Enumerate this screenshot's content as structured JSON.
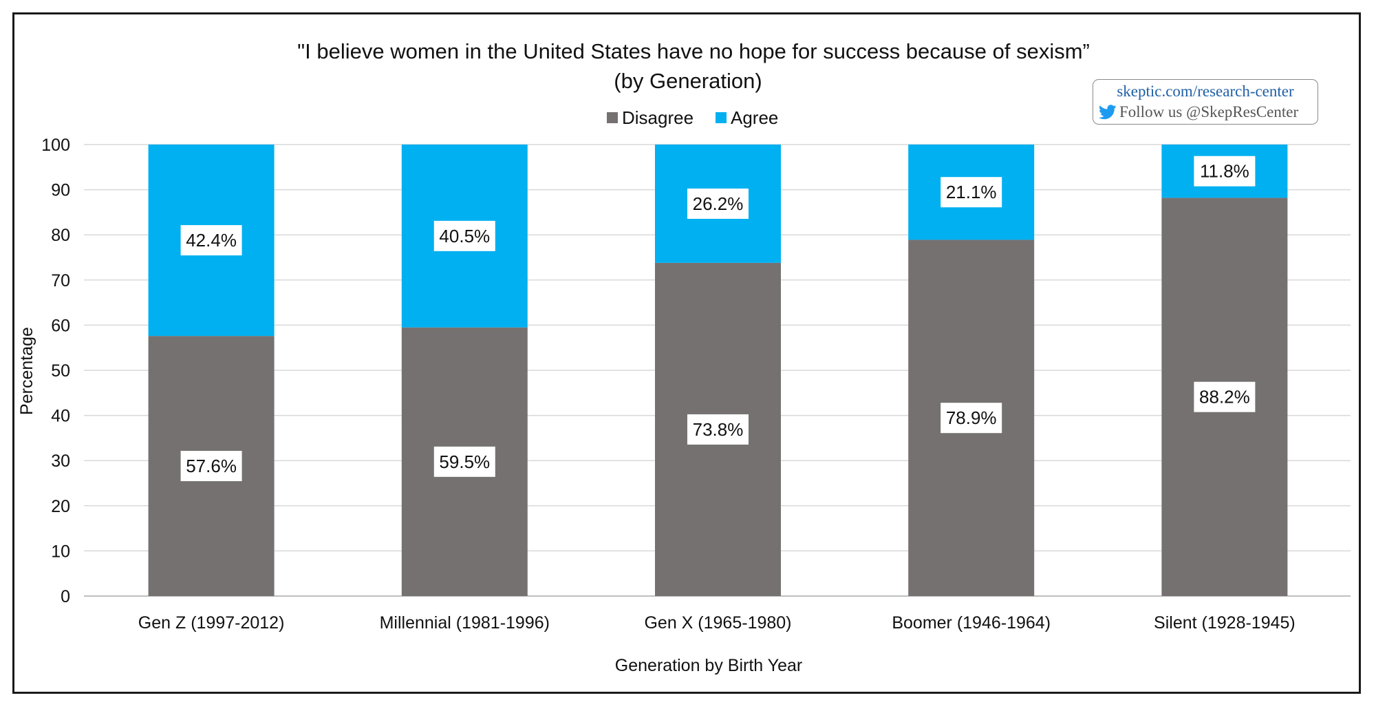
{
  "chart_data": {
    "type": "bar",
    "stacked": true,
    "title": "\"I believe women in the United States have no hope for success because of sexism”",
    "subtitle": "(by Generation)",
    "xlabel": "Generation by Birth Year",
    "ylabel": "Percentage",
    "ylim": [
      0,
      100
    ],
    "yticks": [
      0,
      10,
      20,
      30,
      40,
      50,
      60,
      70,
      80,
      90,
      100
    ],
    "grid": true,
    "legend_position": "top-center",
    "categories": [
      "Gen Z (1997-2012)",
      "Millennial (1981-1996)",
      "Gen X (1965-1980)",
      "Boomer (1946-1964)",
      "Silent (1928-1945)"
    ],
    "series": [
      {
        "name": "Disagree",
        "color": "#767171",
        "values": [
          57.6,
          59.5,
          73.8,
          78.9,
          88.2
        ],
        "labels": [
          "57.6%",
          "59.5%",
          "73.8%",
          "78.9%",
          "88.2%"
        ]
      },
      {
        "name": "Agree",
        "color": "#00B0F0",
        "values": [
          42.4,
          40.5,
          26.2,
          21.1,
          11.8
        ],
        "labels": [
          "42.4%",
          "40.5%",
          "26.2%",
          "21.1%",
          "11.8%"
        ]
      }
    ]
  },
  "credit": {
    "url": "skeptic.com/research-center",
    "follow": "Follow us @SkepResCenter",
    "icon": "twitter-icon",
    "url_color": "#1f5fa6",
    "icon_color": "#1d9bf0"
  }
}
